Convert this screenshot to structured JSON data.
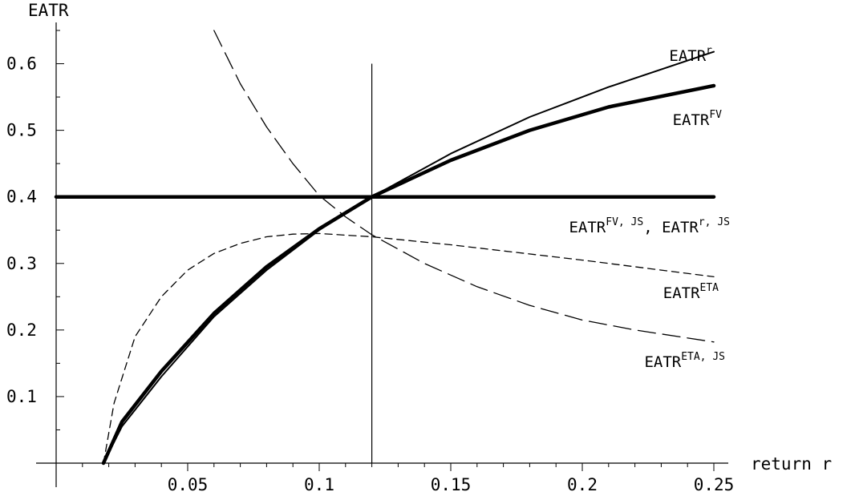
{
  "chart_data": {
    "type": "line",
    "xlabel": "return r",
    "ylabel": "EATR",
    "xlim": [
      0,
      0.25
    ],
    "ylim": [
      0,
      0.65
    ],
    "xticks": [
      {
        "value": 0.05,
        "label": "0.05"
      },
      {
        "value": 0.1,
        "label": "0.1"
      },
      {
        "value": 0.15,
        "label": "0.15"
      },
      {
        "value": 0.2,
        "label": "0.2"
      },
      {
        "value": 0.25,
        "label": "0.25"
      }
    ],
    "yticks": [
      {
        "value": 0.1,
        "label": "0.1"
      },
      {
        "value": 0.2,
        "label": "0.2"
      },
      {
        "value": 0.3,
        "label": "0.3"
      },
      {
        "value": 0.4,
        "label": "0.4"
      },
      {
        "value": 0.5,
        "label": "0.5"
      },
      {
        "value": 0.6,
        "label": "0.6"
      }
    ],
    "vline": {
      "x": 0.12,
      "ylim": [
        0,
        0.6
      ]
    },
    "series": [
      {
        "name": "EATR^r",
        "style": "solid-thin",
        "x": [
          0.018,
          0.025,
          0.04,
          0.06,
          0.08,
          0.1,
          0.12,
          0.15,
          0.18,
          0.21,
          0.25
        ],
        "y": [
          0.0,
          0.055,
          0.13,
          0.22,
          0.29,
          0.35,
          0.4,
          0.465,
          0.52,
          0.565,
          0.618
        ]
      },
      {
        "name": "EATR^FV",
        "style": "solid-thick",
        "x": [
          0.018,
          0.025,
          0.04,
          0.06,
          0.08,
          0.1,
          0.12,
          0.15,
          0.18,
          0.21,
          0.25
        ],
        "y": [
          0.0,
          0.062,
          0.138,
          0.225,
          0.295,
          0.352,
          0.4,
          0.455,
          0.5,
          0.535,
          0.567
        ]
      },
      {
        "name": "EATR^FV,JS, EATR^r,JS",
        "style": "solid-thick",
        "x": [
          0.0,
          0.25
        ],
        "y": [
          0.4,
          0.4
        ]
      },
      {
        "name": "EATR^ETA",
        "style": "dashed-short",
        "x": [
          0.018,
          0.022,
          0.03,
          0.04,
          0.05,
          0.06,
          0.07,
          0.08,
          0.09,
          0.1,
          0.12,
          0.15,
          0.2,
          0.25
        ],
        "y": [
          0.0,
          0.09,
          0.19,
          0.25,
          0.29,
          0.315,
          0.33,
          0.34,
          0.344,
          0.345,
          0.34,
          0.328,
          0.305,
          0.28
        ]
      },
      {
        "name": "EATR^ETA,JS",
        "style": "dashed-long",
        "x": [
          0.06,
          0.07,
          0.08,
          0.09,
          0.1,
          0.11,
          0.12,
          0.14,
          0.16,
          0.18,
          0.2,
          0.22,
          0.25
        ],
        "y": [
          0.65,
          0.57,
          0.505,
          0.45,
          0.402,
          0.37,
          0.343,
          0.3,
          0.265,
          0.237,
          0.215,
          0.2,
          0.182
        ]
      }
    ],
    "annotations": [
      {
        "base": "EATR",
        "sup": "r",
        "x": 0.25,
        "y": 0.62
      },
      {
        "base": "EATR",
        "sup": "FV",
        "x": 0.25,
        "y": 0.52
      },
      {
        "base": "EATR",
        "sup": "FV, JS",
        "base2": ", EATR",
        "sup2": "r, JS",
        "x": 0.25,
        "y": 0.355
      },
      {
        "base": "EATR",
        "sup": "ETA",
        "x": 0.25,
        "y": 0.255
      },
      {
        "base": "EATR",
        "sup": "ETA, JS",
        "x": 0.25,
        "y": 0.155
      }
    ]
  }
}
